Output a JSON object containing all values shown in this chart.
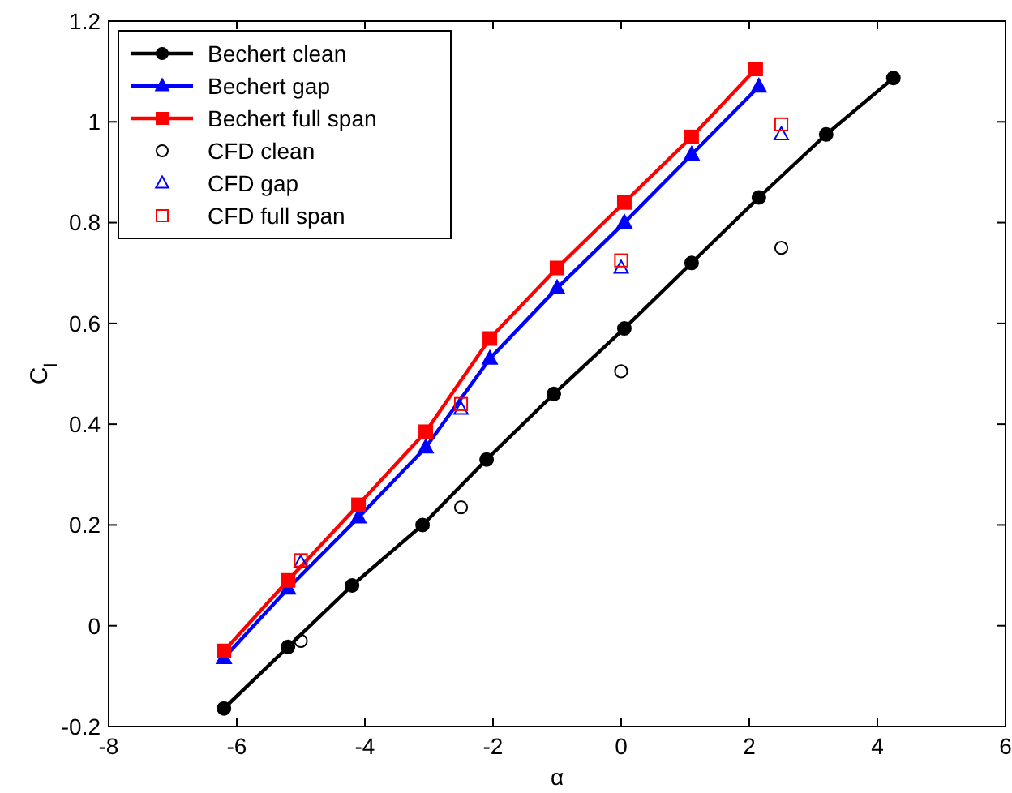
{
  "chart_data": {
    "type": "line",
    "xlabel": "α",
    "ylabel": "C$_{l}$",
    "xlim": [
      -8,
      6
    ],
    "ylim": [
      -0.2,
      1.2
    ],
    "xticks": [
      -8,
      -6,
      -4,
      -2,
      0,
      2,
      4,
      6
    ],
    "yticks": [
      -0.2,
      0,
      0.2,
      0.4,
      0.6,
      0.8,
      1,
      1.2
    ],
    "grid": false,
    "legend": "top left",
    "series": [
      {
        "name": "Bechert clean",
        "color": "#000000",
        "marker": "circle",
        "x": [
          -6.2,
          -5.2,
          -4.2,
          -3.1,
          -2.1,
          -1.05,
          0.05,
          1.1,
          2.15,
          3.2,
          4.25
        ],
        "values": [
          -0.164,
          -0.042,
          0.08,
          0.2,
          0.33,
          0.46,
          0.59,
          0.72,
          0.85,
          0.975,
          1.087
        ]
      },
      {
        "name": "Bechert gap",
        "color": "#0000ff",
        "marker": "triangle",
        "x": [
          -6.2,
          -5.2,
          -4.1,
          -3.05,
          -2.05,
          -1.0,
          0.05,
          1.1,
          2.15
        ],
        "values": [
          -0.064,
          0.074,
          0.215,
          0.354,
          0.53,
          0.67,
          0.8,
          0.935,
          1.07
        ]
      },
      {
        "name": "Bechert full span",
        "color": "#ff0000",
        "marker": "square",
        "x": [
          -6.2,
          -5.2,
          -4.1,
          -3.05,
          -2.05,
          -1.0,
          0.05,
          1.1,
          2.1
        ],
        "values": [
          -0.05,
          0.09,
          0.24,
          0.385,
          0.57,
          0.71,
          0.84,
          0.97,
          1.105
        ]
      },
      {
        "name": "CFD clean",
        "type": "scatter",
        "color": "#000000",
        "marker": "circle",
        "x": [
          -5,
          -2.5,
          0,
          2.5
        ],
        "values": [
          -0.03,
          0.235,
          0.505,
          0.75
        ]
      },
      {
        "name": "CFD gap",
        "type": "scatter",
        "color": "#0000ff",
        "marker": "triangle",
        "x": [
          -5,
          -2.5,
          0,
          2.5
        ],
        "values": [
          0.125,
          0.43,
          0.71,
          0.975
        ]
      },
      {
        "name": "CFD full span",
        "type": "scatter",
        "color": "#ff0000",
        "marker": "square",
        "x": [
          -5,
          -2.5,
          0,
          2.5
        ],
        "values": [
          0.13,
          0.44,
          0.725,
          0.995
        ]
      }
    ]
  }
}
